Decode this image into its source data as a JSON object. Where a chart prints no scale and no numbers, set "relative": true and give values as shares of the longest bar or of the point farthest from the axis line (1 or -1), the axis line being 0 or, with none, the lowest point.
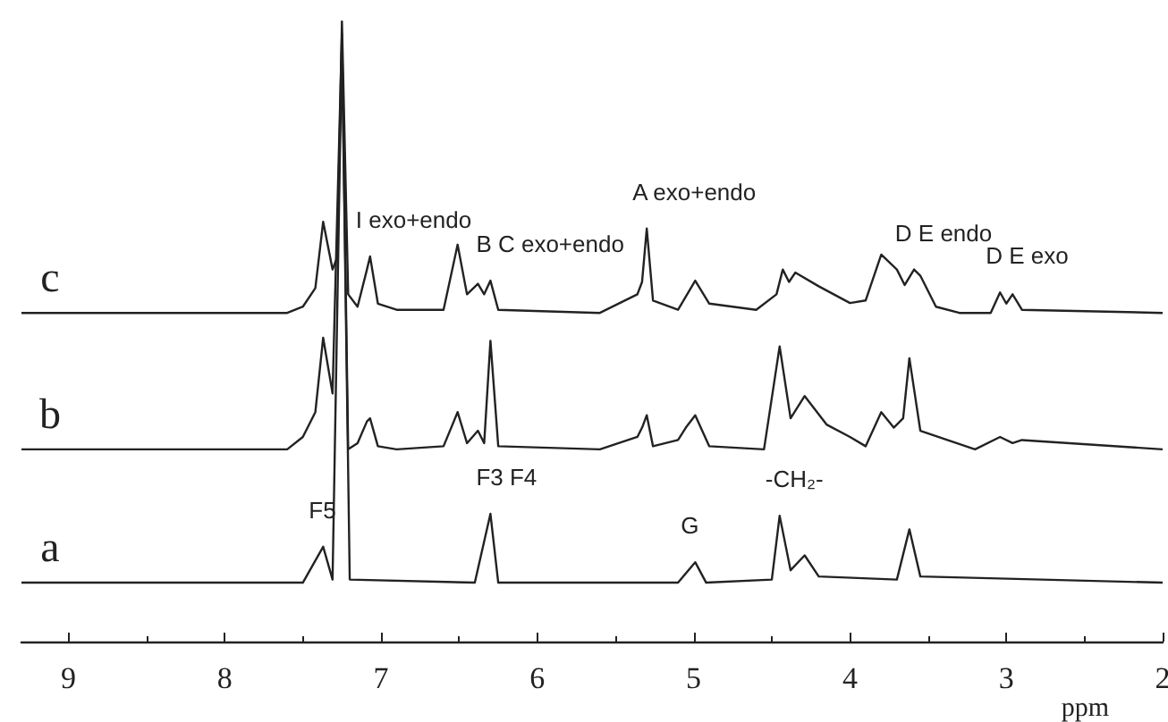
{
  "chart_data": {
    "type": "line",
    "relative": true,
    "xlabel": "ppm",
    "xlim": [
      9.3,
      2
    ],
    "xticks": [
      9,
      8,
      7,
      6,
      5,
      4,
      3,
      2
    ],
    "tick_labels": "x",
    "grid": false,
    "legend": false,
    "marker": "none",
    "line_style": "solid",
    "series": [
      {
        "name": "c",
        "color": "#222222",
        "x": [
          9.3,
          7.6,
          7.5,
          7.42,
          7.37,
          7.31,
          7.28,
          7.25,
          7.21,
          7.15,
          7.09,
          7.07,
          7.02,
          6.9,
          6.6,
          6.51,
          6.45,
          6.38,
          6.34,
          6.3,
          6.25,
          5.6,
          5.36,
          5.33,
          5.3,
          5.26,
          5.1,
          4.99,
          4.9,
          4.6,
          4.47,
          4.43,
          4.39,
          4.35,
          4.2,
          4.0,
          3.9,
          3.8,
          3.7,
          3.65,
          3.59,
          3.55,
          3.45,
          3.3,
          3.1,
          3.04,
          3.0,
          2.96,
          2.9,
          2.0
        ],
        "values": [
          0.53,
          0.53,
          0.54,
          0.57,
          0.677,
          0.6,
          0.62,
          1.0,
          0.56,
          0.54,
          0.6,
          0.621,
          0.545,
          0.535,
          0.535,
          0.64,
          0.56,
          0.577,
          0.56,
          0.582,
          0.535,
          0.53,
          0.56,
          0.58,
          0.666,
          0.55,
          0.535,
          0.582,
          0.545,
          0.535,
          0.56,
          0.6,
          0.58,
          0.595,
          0.573,
          0.546,
          0.55,
          0.624,
          0.6,
          0.575,
          0.6,
          0.59,
          0.54,
          0.53,
          0.53,
          0.563,
          0.545,
          0.56,
          0.535,
          0.53
        ]
      },
      {
        "name": "b",
        "color": "#222222",
        "x": [
          9.3,
          7.6,
          7.5,
          7.42,
          7.37,
          7.31,
          7.25,
          7.21,
          7.15,
          7.09,
          7.07,
          7.02,
          6.9,
          6.6,
          6.51,
          6.45,
          6.38,
          6.34,
          6.3,
          6.25,
          5.6,
          5.36,
          5.33,
          5.3,
          5.26,
          5.1,
          5.05,
          4.99,
          4.9,
          4.55,
          4.45,
          4.38,
          4.29,
          4.15,
          4.0,
          3.9,
          3.8,
          3.72,
          3.66,
          3.62,
          3.55,
          3.2,
          3.04,
          2.96,
          2.9,
          2.0
        ],
        "values": [
          0.31,
          0.31,
          0.33,
          0.37,
          0.49,
          0.4,
          0.98,
          0.31,
          0.32,
          0.355,
          0.36,
          0.315,
          0.31,
          0.315,
          0.37,
          0.32,
          0.34,
          0.32,
          0.485,
          0.315,
          0.31,
          0.33,
          0.345,
          0.365,
          0.315,
          0.325,
          0.345,
          0.365,
          0.315,
          0.31,
          0.476,
          0.36,
          0.396,
          0.35,
          0.33,
          0.315,
          0.37,
          0.345,
          0.36,
          0.457,
          0.34,
          0.31,
          0.33,
          0.32,
          0.325,
          0.31
        ]
      },
      {
        "name": "a",
        "color": "#222222",
        "x": [
          9.3,
          7.5,
          7.37,
          7.31,
          7.25,
          7.2,
          6.4,
          6.3,
          6.25,
          5.1,
          4.99,
          4.92,
          4.5,
          4.45,
          4.38,
          4.29,
          4.2,
          3.7,
          3.62,
          3.55,
          2.0
        ],
        "values": [
          0.095,
          0.095,
          0.153,
          0.1,
          0.967,
          0.1,
          0.095,
          0.206,
          0.095,
          0.095,
          0.128,
          0.095,
          0.1,
          0.203,
          0.115,
          0.139,
          0.105,
          0.1,
          0.181,
          0.105,
          0.095
        ]
      }
    ],
    "annotations": [
      {
        "text": "I exo+endo",
        "x": 7.07,
        "y": 0.621
      },
      {
        "text": "B C exo+endo",
        "x": 6.3,
        "y": 0.582
      },
      {
        "text": "A exo+endo",
        "x": 5.3,
        "y": 0.666
      },
      {
        "text": "D E endo",
        "x": 3.62,
        "y": 0.6
      },
      {
        "text": "D E exo",
        "x": 3.04,
        "y": 0.563
      },
      {
        "text": "F5",
        "x": 7.37,
        "y": 0.153
      },
      {
        "text": "F3 F4",
        "x": 6.3,
        "y": 0.206
      },
      {
        "text": "G",
        "x": 4.99,
        "y": 0.128
      },
      {
        "text": "-CH₂-",
        "x": 4.45,
        "y": 0.203
      }
    ]
  }
}
